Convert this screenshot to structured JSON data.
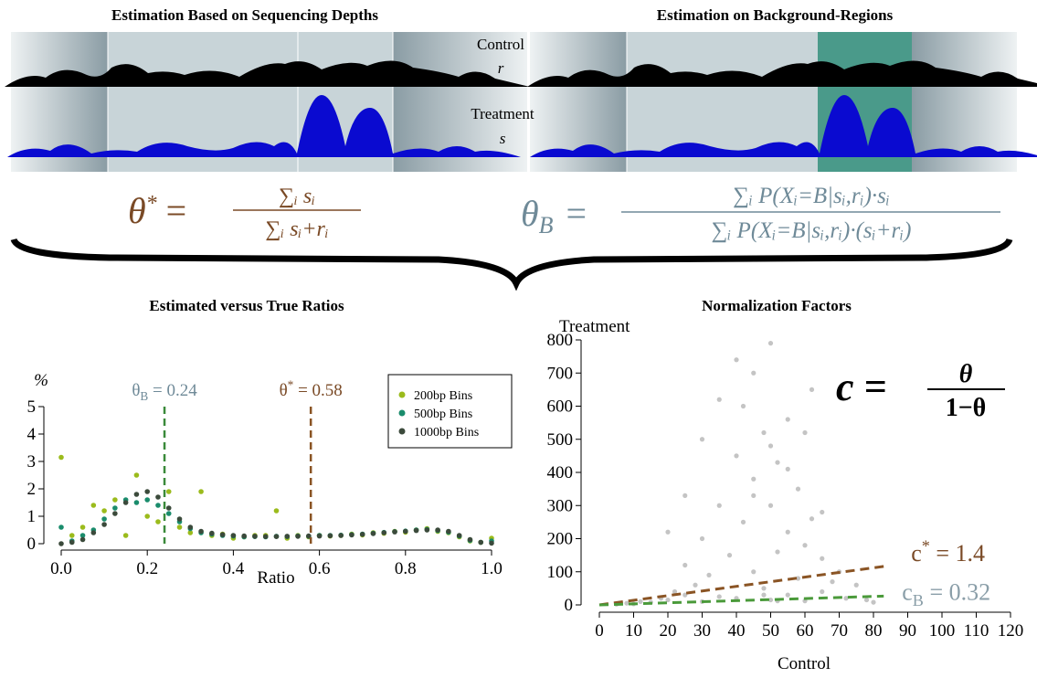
{
  "panels": [
    {
      "title": "Estimation Based on Sequencing Depths"
    },
    {
      "title": "Estimation on Background-Regions"
    }
  ],
  "tracks": {
    "control": "Control",
    "control_symbol": "r",
    "treatment": "Treatment",
    "treatment_symbol": "s"
  },
  "formulas": [
    {
      "symbol": "θ",
      "sup": "*",
      "equals": "=",
      "numerator": "∑ᵢ sᵢ",
      "denominator": "∑ᵢ sᵢ+rᵢ"
    },
    {
      "symbol": "θ",
      "sub": "B",
      "equals": "=",
      "numerator": "∑ᵢ P(Xᵢ=B|sᵢ,rᵢ)·sᵢ",
      "denominator": "∑ᵢ P(Xᵢ=B|sᵢ,rᵢ)·(sᵢ+rᵢ)"
    }
  ],
  "chart_data": [
    {
      "type": "scatter",
      "title": "Estimated versus True Ratios",
      "x_label": "Ratio",
      "y_label": "%",
      "xlim": [
        0,
        1
      ],
      "ylim": [
        0,
        5
      ],
      "xticks": [
        {
          "value": 0,
          "label": "0.0"
        },
        {
          "value": 0.2,
          "label": "0.2"
        },
        {
          "value": 0.4,
          "label": "0.4"
        },
        {
          "value": 0.6,
          "label": "0.6"
        },
        {
          "value": 0.8,
          "label": "0.8"
        },
        {
          "value": 1,
          "label": "1.0"
        }
      ],
      "yticks": [
        0,
        1,
        2,
        3,
        4,
        5
      ],
      "legend": "upper right",
      "x": [
        0,
        0.025,
        0.05,
        0.075,
        0.1,
        0.125,
        0.15,
        0.175,
        0.2,
        0.225,
        0.25,
        0.275,
        0.3,
        0.325,
        0.35,
        0.375,
        0.4,
        0.425,
        0.45,
        0.475,
        0.5,
        0.525,
        0.55,
        0.575,
        0.6,
        0.625,
        0.65,
        0.675,
        0.7,
        0.725,
        0.75,
        0.775,
        0.8,
        0.825,
        0.85,
        0.875,
        0.9,
        0.925,
        0.95,
        0.975,
        1
      ],
      "series": [
        {
          "name": "200bp Bins",
          "color": "#9bbb1c",
          "values": [
            3.15,
            0.3,
            0.6,
            1.4,
            1.2,
            1.6,
            0.3,
            2.5,
            1.0,
            0.8,
            1.9,
            0.6,
            0.4,
            1.9,
            0.3,
            0.35,
            0.2,
            0.25,
            0.3,
            0.3,
            1.2,
            0.2,
            0.3,
            0.25,
            0.3,
            0.28,
            0.3,
            0.35,
            0.32,
            0.4,
            0.38,
            0.45,
            0.42,
            0.5,
            0.55,
            0.45,
            0.4,
            0.25,
            0.1,
            0.05,
            0.2
          ]
        },
        {
          "name": "500bp Bins",
          "color": "#1a8c6c",
          "values": [
            0.6,
            0.1,
            0.3,
            0.5,
            0.9,
            1.3,
            1.6,
            1.5,
            1.6,
            1.4,
            1.1,
            0.8,
            0.55,
            0.4,
            0.35,
            0.3,
            0.28,
            0.25,
            0.26,
            0.25,
            0.27,
            0.26,
            0.28,
            0.27,
            0.3,
            0.3,
            0.31,
            0.33,
            0.35,
            0.38,
            0.41,
            0.44,
            0.46,
            0.5,
            0.52,
            0.48,
            0.42,
            0.28,
            0.12,
            0.05,
            0.1
          ]
        },
        {
          "name": "1000bp Bins",
          "color": "#3b4a3b",
          "values": [
            0,
            0.05,
            0.15,
            0.4,
            0.7,
            1.1,
            1.5,
            1.8,
            1.9,
            1.7,
            1.3,
            0.9,
            0.6,
            0.45,
            0.38,
            0.33,
            0.3,
            0.28,
            0.27,
            0.26,
            0.26,
            0.27,
            0.27,
            0.28,
            0.28,
            0.29,
            0.3,
            0.32,
            0.34,
            0.37,
            0.4,
            0.43,
            0.45,
            0.48,
            0.5,
            0.5,
            0.45,
            0.3,
            0.15,
            0.05,
            0.02
          ]
        }
      ],
      "vlines": [
        {
          "x": 0.24,
          "symbol": "θ",
          "sub": "B",
          "label": " = 0.24",
          "color": "#3a8a3a",
          "text_color": "#6f8a98"
        },
        {
          "x": 0.58,
          "symbol": "θ",
          "sup": "*",
          "label": " = 0.58",
          "color": "#8a5424",
          "text_color": "#7a4a26"
        }
      ]
    },
    {
      "type": "scatter",
      "title": "Normalization Factors",
      "x_label": "Control",
      "y_label": "Treatment",
      "xlim": [
        0,
        120
      ],
      "ylim": [
        0,
        800
      ],
      "xticks": [
        0,
        10,
        20,
        30,
        40,
        50,
        60,
        70,
        80,
        90,
        100,
        110,
        120
      ],
      "yticks": [
        0,
        100,
        200,
        300,
        400,
        500,
        600,
        700,
        800
      ],
      "color": "#555555",
      "x": [
        5,
        8,
        10,
        12,
        15,
        18,
        20,
        22,
        25,
        25,
        28,
        30,
        30,
        32,
        35,
        35,
        38,
        40,
        40,
        42,
        42,
        45,
        45,
        45,
        48,
        48,
        50,
        50,
        50,
        52,
        52,
        55,
        55,
        55,
        58,
        58,
        60,
        60,
        62,
        62,
        65,
        65,
        68,
        70,
        72,
        75,
        78,
        80,
        30,
        35,
        40,
        45,
        50,
        55,
        60,
        65,
        20,
        25,
        48,
        52
      ],
      "values": [
        2,
        5,
        3,
        10,
        8,
        20,
        15,
        40,
        30,
        120,
        60,
        200,
        10,
        90,
        300,
        25,
        150,
        450,
        20,
        250,
        600,
        100,
        380,
        700,
        50,
        520,
        15,
        300,
        790,
        160,
        430,
        30,
        220,
        560,
        80,
        350,
        12,
        180,
        260,
        650,
        40,
        140,
        70,
        100,
        20,
        60,
        15,
        8,
        500,
        620,
        740,
        330,
        480,
        410,
        520,
        280,
        220,
        330,
        30,
        12
      ],
      "lines": [
        {
          "slope": 1.4,
          "x_range": [
            0,
            83
          ],
          "symbol": "c",
          "sup": "*",
          "label": " = 1.4",
          "color": "#8a5424",
          "text_color": "#7a4a26"
        },
        {
          "slope": 0.32,
          "x_range": [
            0,
            83
          ],
          "symbol": "c",
          "sub": "B",
          "label": " = 0.32",
          "color": "#4a9a3a",
          "text_color": "#8a9ea8"
        }
      ],
      "annotation": {
        "lhs": "c =",
        "numerator": "θ",
        "denominator": "1−θ"
      }
    }
  ]
}
